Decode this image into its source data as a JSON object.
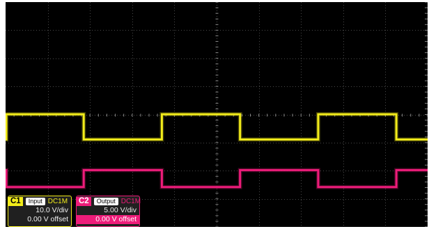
{
  "colors": {
    "screen": "#000000",
    "grid": "#4a4a4a",
    "ch1": "#f2ec1a",
    "ch2": "#ee1c7a"
  },
  "chart_data": {
    "type": "line",
    "grid": true,
    "series": [
      {
        "name": "Input",
        "channel": "C1",
        "x": [
          0,
          0.05,
          0.05,
          5.0,
          5.0,
          10.0,
          10.0,
          15.0,
          15.0,
          20.0,
          20.0,
          25.0,
          25.0,
          27.0
        ],
        "y": [
          -0.5,
          -0.5,
          8.5,
          8.5,
          -0.5,
          -0.5,
          8.5,
          8.5,
          -0.5,
          -0.5,
          8.5,
          8.5,
          -0.5,
          -0.5
        ]
      },
      {
        "name": "Output",
        "channel": "C2",
        "x": [
          0,
          0.05,
          0.05,
          5.0,
          5.0,
          10.0,
          10.0,
          15.0,
          15.0,
          20.0,
          20.0,
          25.0,
          25.0,
          27.0
        ],
        "y": [
          1.5,
          1.5,
          -1.5,
          -1.5,
          1.5,
          1.5,
          -1.5,
          -1.5,
          1.5,
          1.5,
          -1.5,
          -1.5,
          1.5,
          1.5
        ]
      }
    ]
  },
  "channels": [
    {
      "num": "C1",
      "name": "Input",
      "coupling": "DC1M",
      "scale": "10.0 V/div",
      "offset": "0.00 V offset"
    },
    {
      "num": "C2",
      "name": "Output",
      "coupling": "DC1M",
      "scale": "5.00 V/div",
      "offset": "0.00 V offset"
    }
  ]
}
